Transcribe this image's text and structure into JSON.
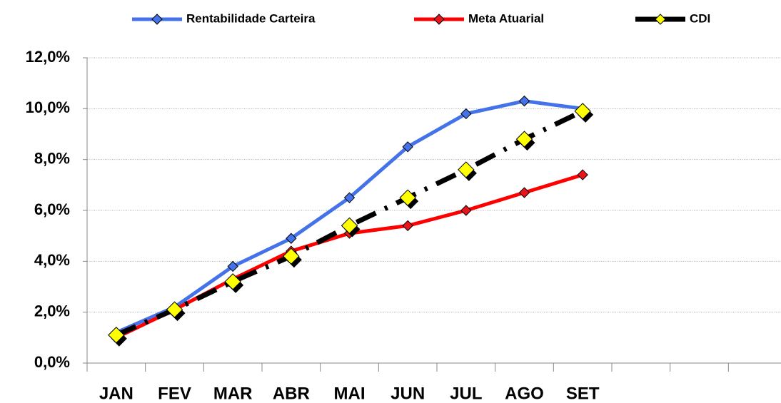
{
  "chart_data": {
    "type": "line",
    "categories": [
      "JAN",
      "FEV",
      "MAR",
      "ABR",
      "MAI",
      "JUN",
      "JUL",
      "AGO",
      "SET",
      null,
      null,
      null
    ],
    "series": [
      {
        "name": "Rentabilidade Carteira",
        "color": "#4472e8",
        "marker_color": "#4472e8",
        "style": "solid",
        "values": [
          1.2,
          2.2,
          3.8,
          4.9,
          6.5,
          8.5,
          9.8,
          10.3,
          10.0,
          null,
          null,
          null
        ]
      },
      {
        "name": "Meta Atuarial",
        "color": "#ff0000",
        "marker_color": "#e8151b",
        "style": "solid",
        "values": [
          1.0,
          2.1,
          3.3,
          4.4,
          5.1,
          5.4,
          6.0,
          6.7,
          7.4,
          null,
          null,
          null
        ]
      },
      {
        "name": "CDI",
        "color": "#000000",
        "marker_color": "#ffff00",
        "style": "dashdot",
        "values": [
          1.1,
          2.1,
          3.2,
          4.2,
          5.4,
          6.5,
          7.6,
          8.8,
          9.9,
          null,
          null,
          null
        ]
      }
    ],
    "ylim": [
      0,
      12
    ],
    "yticks": [
      {
        "value": 0,
        "label": "0,0%"
      },
      {
        "value": 2,
        "label": "2,0%"
      },
      {
        "value": 4,
        "label": "4,0%"
      },
      {
        "value": 6,
        "label": "6,0%"
      },
      {
        "value": 8,
        "label": "8,0%"
      },
      {
        "value": 10,
        "label": "10,0%"
      },
      {
        "value": 12,
        "label": "12,0%"
      }
    ],
    "grid": true,
    "legend": "top"
  }
}
